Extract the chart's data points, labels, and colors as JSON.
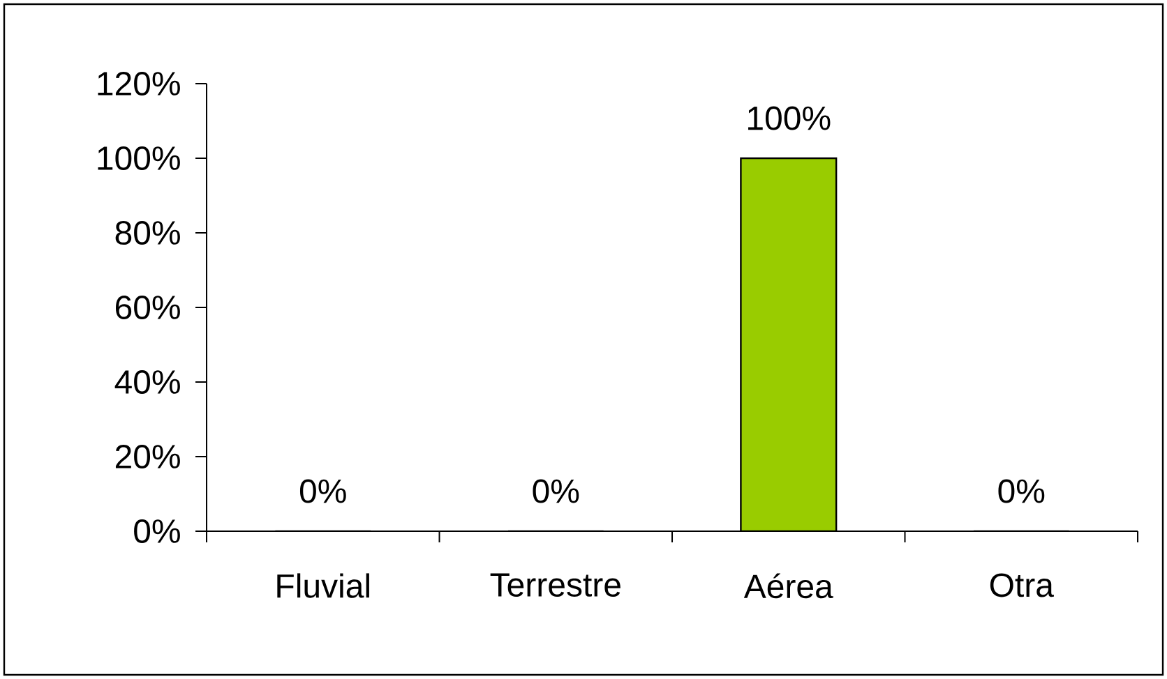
{
  "chart_data": {
    "type": "bar",
    "categories": [
      "Fluvial",
      "Terrestre",
      "Aérea",
      "Otra"
    ],
    "values": [
      0,
      0,
      100,
      0
    ],
    "value_labels": [
      "0%",
      "0%",
      "100%",
      "0%"
    ],
    "color": "#99cc00",
    "ylim": [
      0,
      120
    ],
    "yticks": [
      {
        "value": 0,
        "label": "0%"
      },
      {
        "value": 20,
        "label": "20%"
      },
      {
        "value": 40,
        "label": "40%"
      },
      {
        "value": 60,
        "label": "60%"
      },
      {
        "value": 80,
        "label": "80%"
      },
      {
        "value": 100,
        "label": "100%"
      },
      {
        "value": 120,
        "label": "120%"
      }
    ],
    "grid": false
  }
}
